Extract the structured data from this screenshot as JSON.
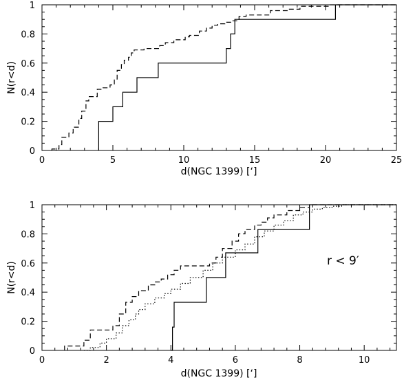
{
  "chart_data": [
    {
      "type": "line",
      "subtype": "cumulative-step",
      "xlabel": "d(NGC 1399) [‘]",
      "ylabel": "N(r<d)",
      "xlim": [
        0,
        25
      ],
      "ylim": [
        0,
        1
      ],
      "x_ticks": [
        0,
        5,
        10,
        15,
        20,
        25
      ],
      "x_tick_labels": [
        "0",
        "5",
        "10",
        "15",
        "20",
        "25"
      ],
      "y_ticks": [
        0,
        0.2,
        0.4,
        0.6,
        0.8,
        1
      ],
      "y_tick_labels": [
        "0",
        "0.2",
        "0.4",
        "0.6",
        "0.8",
        "1"
      ],
      "grid": false,
      "series": [
        {
          "style": "solid",
          "x": [
            4.0,
            4.0,
            5.0,
            5.7,
            6.7,
            8.2,
            13.0,
            13.3,
            13.6,
            20.7
          ],
          "values": [
            0.0,
            0.2,
            0.3,
            0.4,
            0.5,
            0.6,
            0.7,
            0.8,
            0.9,
            1.0
          ]
        },
        {
          "style": "dashed",
          "x": [
            0.7,
            1.2,
            1.4,
            1.9,
            2.2,
            2.6,
            2.8,
            3.1,
            3.3,
            3.9,
            4.3,
            4.5,
            4.8,
            5.1,
            5.3,
            5.6,
            5.8,
            6.1,
            6.3,
            6.5,
            7.2,
            8.3,
            8.7,
            9.3,
            10.1,
            10.4,
            11.1,
            11.6,
            12.0,
            12.4,
            12.9,
            13.4,
            13.9,
            14.4,
            16.1,
            17.4,
            18.2,
            20.3
          ],
          "values": [
            0.01,
            0.04,
            0.09,
            0.12,
            0.16,
            0.22,
            0.27,
            0.34,
            0.37,
            0.42,
            0.43,
            0.43,
            0.45,
            0.49,
            0.55,
            0.59,
            0.62,
            0.64,
            0.67,
            0.69,
            0.7,
            0.72,
            0.74,
            0.76,
            0.78,
            0.79,
            0.82,
            0.84,
            0.86,
            0.87,
            0.88,
            0.89,
            0.92,
            0.93,
            0.96,
            0.97,
            0.99,
            1.0
          ]
        }
      ]
    },
    {
      "type": "line",
      "subtype": "cumulative-step",
      "xlabel": "d(NGC 1399) [‘]",
      "ylabel": "N(r<d)",
      "xlim": [
        0,
        11
      ],
      "ylim": [
        0,
        1
      ],
      "x_ticks": [
        0,
        2,
        4,
        6,
        8,
        10
      ],
      "x_tick_labels": [
        "0",
        "2",
        "4",
        "6",
        "8",
        "10"
      ],
      "y_ticks": [
        0,
        0.2,
        0.4,
        0.6,
        0.8,
        1
      ],
      "y_tick_labels": [
        "0",
        "0.2",
        "0.4",
        "0.6",
        "0.8",
        "1"
      ],
      "annotations": [
        "r < 9′"
      ],
      "grid": false,
      "series": [
        {
          "style": "solid",
          "x": [
            4.0,
            4.05,
            4.1,
            5.1,
            5.7,
            6.7,
            8.3
          ],
          "values": [
            0.0,
            0.16,
            0.33,
            0.5,
            0.67,
            0.83,
            1.0
          ]
        },
        {
          "style": "dashed",
          "x": [
            0.7,
            1.3,
            1.5,
            2.2,
            2.4,
            2.6,
            2.8,
            3.0,
            3.3,
            3.5,
            3.7,
            3.9,
            4.1,
            4.3,
            4.5,
            4.7,
            5.0,
            5.2,
            5.4,
            5.6,
            5.9,
            6.1,
            6.3,
            6.6,
            6.8,
            7.0,
            7.2,
            7.6,
            8.0,
            8.3
          ],
          "values": [
            0.03,
            0.07,
            0.14,
            0.17,
            0.25,
            0.33,
            0.37,
            0.41,
            0.45,
            0.47,
            0.49,
            0.52,
            0.55,
            0.58,
            0.58,
            0.58,
            0.58,
            0.6,
            0.64,
            0.7,
            0.75,
            0.8,
            0.83,
            0.86,
            0.88,
            0.91,
            0.93,
            0.96,
            0.98,
            1.0
          ]
        },
        {
          "style": "dotted",
          "x": [
            1.3,
            1.5,
            1.8,
            2.0,
            2.3,
            2.5,
            2.7,
            2.9,
            3.0,
            3.2,
            3.5,
            3.8,
            4.0,
            4.3,
            4.6,
            5.0,
            5.3,
            5.6,
            6.0,
            6.3,
            6.6,
            6.9,
            7.2,
            7.5,
            7.8,
            8.1,
            8.4,
            8.7,
            9.0,
            9.3
          ],
          "values": [
            0.0,
            0.02,
            0.05,
            0.08,
            0.12,
            0.17,
            0.21,
            0.25,
            0.28,
            0.32,
            0.36,
            0.39,
            0.42,
            0.46,
            0.5,
            0.55,
            0.6,
            0.64,
            0.69,
            0.73,
            0.78,
            0.82,
            0.86,
            0.89,
            0.93,
            0.95,
            0.97,
            0.98,
            0.99,
            1.0
          ]
        }
      ]
    }
  ]
}
